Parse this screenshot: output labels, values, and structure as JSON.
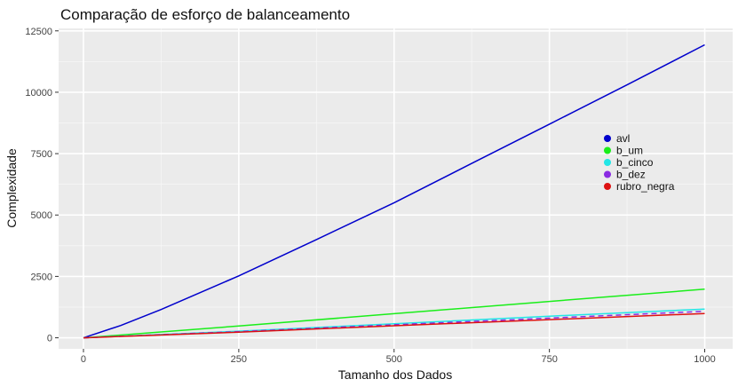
{
  "chart_data": {
    "type": "line",
    "title": "Comparação de esforço de balanceamento",
    "xlabel": "Tamanho dos Dados",
    "ylabel": "Complexidade",
    "xlim": [
      -40,
      1045
    ],
    "ylim": [
      -450,
      12600
    ],
    "xticks": [
      0,
      250,
      500,
      750,
      1000
    ],
    "xtick_labels": [
      "0",
      "250",
      "500",
      "750",
      "1000"
    ],
    "yticks": [
      0,
      2500,
      5000,
      7500,
      10000,
      12500
    ],
    "ytick_labels": [
      "0",
      "2500",
      "5000",
      "7500",
      "10000",
      "12500"
    ],
    "grid": true,
    "legend_position": "right",
    "series": [
      {
        "name": "avl",
        "color": "#0000cc",
        "dash": false,
        "x": [
          0,
          60,
          125,
          250,
          375,
          500,
          625,
          750,
          875,
          1000
        ],
        "y": [
          0,
          500,
          1150,
          2520,
          4000,
          5500,
          7100,
          8700,
          10300,
          11930
        ]
      },
      {
        "name": "b_um",
        "color": "#1aee1a",
        "dash": false,
        "x": [
          0,
          250,
          500,
          750,
          1000
        ],
        "y": [
          0,
          480,
          980,
          1480,
          1980
        ]
      },
      {
        "name": "b_cinco",
        "color": "#22e6e6",
        "dash": false,
        "x": [
          0,
          250,
          500,
          750,
          1000
        ],
        "y": [
          0,
          270,
          570,
          880,
          1170
        ]
      },
      {
        "name": "b_dez",
        "color": "#8a2be2",
        "dash": true,
        "x": [
          0,
          250,
          500,
          750,
          1000
        ],
        "y": [
          0,
          250,
          530,
          800,
          1080
        ]
      },
      {
        "name": "rubro_negra",
        "color": "#dd1111",
        "dash": false,
        "x": [
          0,
          250,
          500,
          750,
          1000
        ],
        "y": [
          0,
          230,
          490,
          740,
          990
        ]
      }
    ]
  }
}
